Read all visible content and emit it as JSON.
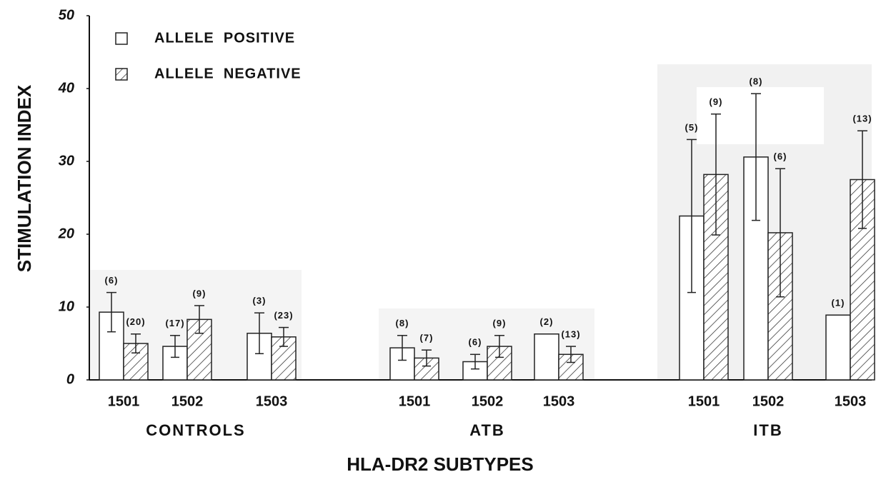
{
  "chart_data": {
    "type": "bar",
    "x_label": "HLA-DR2 SUBTYPES",
    "y_label": "STIMULATION INDEX",
    "categories": [
      "1501",
      "1502",
      "1503",
      "1501",
      "1502",
      "1503",
      "1501",
      "1502",
      "1503"
    ],
    "group_labels": [
      "CONTROLS",
      "ATB",
      "ITB"
    ],
    "series": [
      {
        "name": "ALLELE  POSITIVE",
        "color": "#ffffff",
        "pattern": "none",
        "values": [
          9.3,
          4.6,
          6.4,
          4.4,
          2.5,
          6.3,
          22.5,
          30.6,
          8.9
        ],
        "errors": [
          2.7,
          1.5,
          2.8,
          1.7,
          1.0,
          null,
          10.5,
          8.7,
          null
        ],
        "n_labels": [
          "(6)",
          "(17)",
          "(3)",
          "(8)",
          "(6)",
          "(2)",
          "(5)",
          "(8)",
          "(1)"
        ]
      },
      {
        "name": "ALLELE  NEGATIVE",
        "color": "#ffffff",
        "pattern": "hatch",
        "values": [
          5.0,
          8.3,
          5.9,
          3.0,
          4.6,
          3.5,
          28.2,
          20.2,
          27.5
        ],
        "errors": [
          1.3,
          1.9,
          1.3,
          1.1,
          1.5,
          1.1,
          8.3,
          8.8,
          6.7
        ],
        "n_labels": [
          "(20)",
          "(9)",
          "(23)",
          "(7)",
          "(9)",
          "(13)",
          "(9)",
          "(6)",
          "(13)"
        ]
      }
    ],
    "ylim": [
      0,
      50
    ],
    "yticks": [
      0,
      10,
      20,
      30,
      40,
      50
    ],
    "legend": "upper left"
  }
}
